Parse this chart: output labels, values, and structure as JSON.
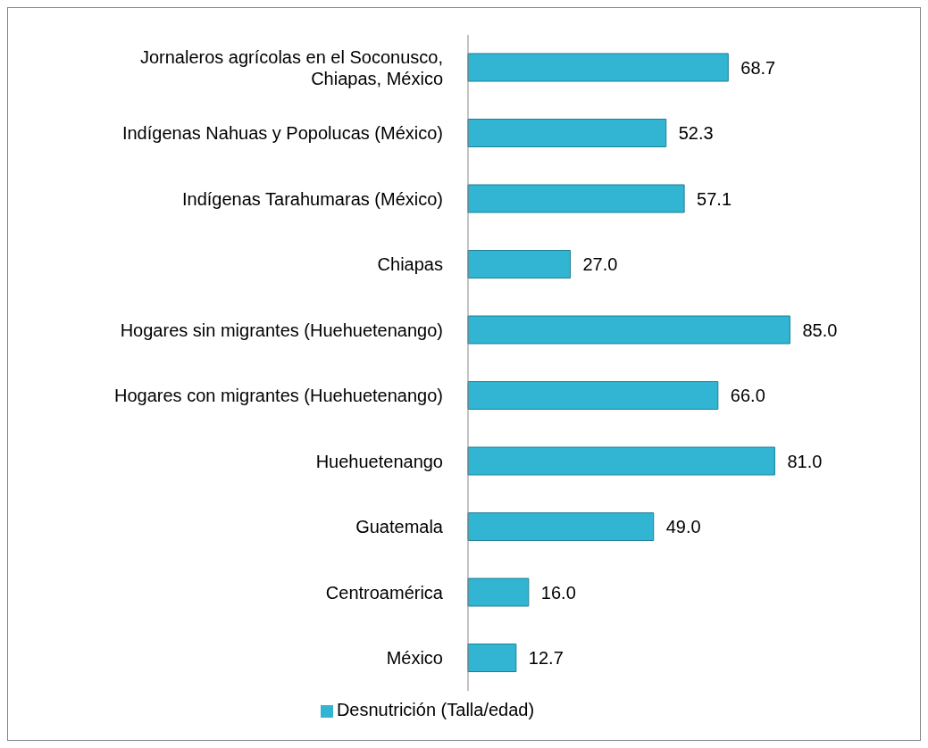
{
  "chart_data": {
    "type": "bar",
    "orientation": "horizontal",
    "categories": [
      "Jornaleros agrícolas en el Soconusco, Chiapas, México",
      "Indígenas Nahuas y Popolucas (México)",
      "Indígenas Tarahumaras (México)",
      "Chiapas",
      "Hogares sin migrantes (Huehuetenango)",
      "Hogares con migrantes (Huehuetenango)",
      "Huehuetenango",
      "Guatemala",
      "Centroamérica",
      "México"
    ],
    "series": [
      {
        "name": "Desnutrición (Talla/edad)",
        "color": "#31b5d3",
        "values": [
          68.7,
          52.3,
          57.1,
          27.0,
          85.0,
          66.0,
          81.0,
          49.0,
          16.0,
          12.7
        ],
        "value_labels": [
          "68.7",
          "52.3",
          "57.1",
          "27.0",
          "85.0",
          "66.0",
          "81.0",
          "49.0",
          "16.0",
          "12.7"
        ]
      }
    ],
    "legend": "bottom"
  }
}
